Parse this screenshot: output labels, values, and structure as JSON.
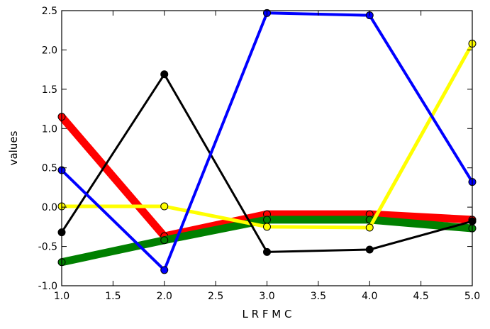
{
  "chart_data": {
    "type": "line",
    "xlabel": "L R F M C",
    "ylabel": "values",
    "xlim": [
      1.0,
      5.0
    ],
    "ylim": [
      -1.0,
      2.5
    ],
    "xticks": [
      "1.0",
      "1.5",
      "2.0",
      "2.5",
      "3.0",
      "3.5",
      "4.0",
      "4.5",
      "5.0"
    ],
    "yticks": [
      "-1.0",
      "-0.5",
      "0.0",
      "0.5",
      "1.0",
      "1.5",
      "2.0",
      "2.5"
    ],
    "grid": false,
    "x": [
      1,
      2,
      3,
      4,
      5
    ],
    "series": [
      {
        "color": "#ff0000",
        "values": [
          1.15,
          -0.37,
          -0.09,
          -0.09,
          -0.16
        ]
      },
      {
        "color": "#008000",
        "values": [
          -0.7,
          -0.42,
          -0.16,
          -0.16,
          -0.27
        ]
      },
      {
        "color": "#ffff00",
        "values": [
          0.01,
          0.01,
          -0.25,
          -0.26,
          2.08
        ]
      },
      {
        "color": "#000000",
        "values": [
          -0.32,
          1.69,
          -0.57,
          -0.54,
          -0.18
        ]
      },
      {
        "color": "#0000ff",
        "values": [
          0.47,
          -0.8,
          2.47,
          2.44,
          0.32
        ]
      }
    ]
  }
}
